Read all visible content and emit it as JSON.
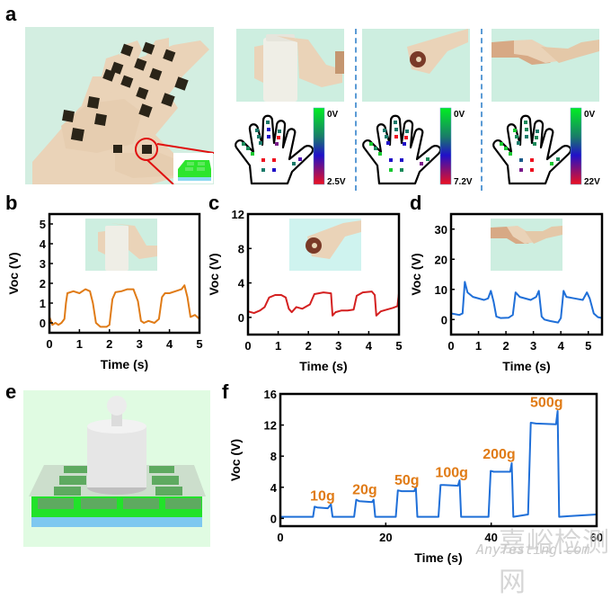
{
  "figure": {
    "panel_labels": {
      "a": "a",
      "b": "b",
      "c": "c",
      "d": "d",
      "e": "e",
      "f": "f"
    },
    "panel_a": {
      "scenarios": [
        {
          "name": "grip-bottle",
          "colorbar_top": "0V",
          "colorbar_bottom": "2.5V"
        },
        {
          "name": "grip-ball",
          "colorbar_top": "0V",
          "colorbar_bottom": "7.2V"
        },
        {
          "name": "handshake",
          "colorbar_top": "0V",
          "colorbar_bottom": "22V"
        }
      ],
      "colorbar_colors": [
        "#00ee22",
        "#1a7a6a",
        "#2010c8",
        "#ee1020"
      ]
    },
    "watermark": {
      "cn": "嘉峪检测网",
      "en": "AnyTesting.com"
    }
  },
  "chart_data": [
    {
      "id": "b",
      "type": "line",
      "title": "",
      "xlabel": "Time (s)",
      "ylabel": "Voc (V)",
      "xlim": [
        0,
        5
      ],
      "ylim": [
        -0.5,
        5.5
      ],
      "xticks": [
        0,
        1,
        2,
        3,
        4,
        5
      ],
      "yticks": [
        0,
        1,
        2,
        3,
        4,
        5
      ],
      "color": "#e07b16",
      "x": [
        0,
        0.1,
        0.2,
        0.3,
        0.4,
        0.5,
        0.55,
        0.6,
        0.8,
        1.0,
        1.2,
        1.35,
        1.45,
        1.55,
        1.7,
        1.9,
        2.0,
        2.1,
        2.2,
        2.4,
        2.6,
        2.8,
        2.95,
        3.05,
        3.15,
        3.3,
        3.5,
        3.65,
        3.75,
        3.85,
        4.0,
        4.2,
        4.4,
        4.5,
        4.6,
        4.7,
        4.85,
        5.0
      ],
      "y": [
        0.3,
        -0.1,
        0.0,
        -0.1,
        0.0,
        0.2,
        1.0,
        1.5,
        1.6,
        1.5,
        1.7,
        1.6,
        1.0,
        0.0,
        -0.2,
        -0.2,
        -0.1,
        1.2,
        1.55,
        1.6,
        1.7,
        1.7,
        1.1,
        0.1,
        0.0,
        0.1,
        0.0,
        0.2,
        1.3,
        1.5,
        1.5,
        1.6,
        1.7,
        1.9,
        1.3,
        0.3,
        0.4,
        0.2
      ]
    },
    {
      "id": "c",
      "type": "line",
      "title": "",
      "xlabel": "Time (s)",
      "ylabel": "Voc (V)",
      "xlim": [
        0,
        5
      ],
      "ylim": [
        -2,
        12
      ],
      "xticks": [
        0,
        1,
        2,
        3,
        4,
        5
      ],
      "yticks": [
        0,
        4,
        8,
        12
      ],
      "color": "#d42020",
      "x": [
        0,
        0.2,
        0.4,
        0.55,
        0.7,
        0.9,
        1.1,
        1.25,
        1.35,
        1.45,
        1.6,
        1.8,
        1.95,
        2.05,
        2.2,
        2.5,
        2.75,
        2.8,
        2.9,
        3.1,
        3.3,
        3.5,
        3.6,
        3.8,
        4.1,
        4.2,
        4.25,
        4.4,
        4.6,
        4.8,
        4.95,
        5.0
      ],
      "y": [
        0.7,
        0.5,
        0.8,
        1.2,
        2.3,
        2.6,
        2.6,
        2.3,
        1.0,
        0.6,
        1.2,
        1.0,
        1.3,
        1.5,
        2.7,
        2.9,
        2.8,
        0.2,
        0.6,
        0.8,
        0.8,
        0.9,
        2.5,
        2.9,
        3.0,
        2.6,
        0.2,
        0.7,
        0.9,
        1.1,
        1.3,
        2.8
      ]
    },
    {
      "id": "d",
      "type": "line",
      "title": "",
      "xlabel": "Time (s)",
      "ylabel": "Voc (V)",
      "xlim": [
        0,
        5.5
      ],
      "ylim": [
        -5,
        35
      ],
      "xticks": [
        0,
        1,
        2,
        3,
        4,
        5
      ],
      "yticks": [
        0,
        10,
        20,
        30
      ],
      "color": "#1f6fd8",
      "x": [
        0,
        0.3,
        0.42,
        0.5,
        0.6,
        0.8,
        1.2,
        1.35,
        1.45,
        1.55,
        1.65,
        1.8,
        2.1,
        2.25,
        2.35,
        2.5,
        2.9,
        3.1,
        3.2,
        3.3,
        3.4,
        3.6,
        3.9,
        4.0,
        4.1,
        4.2,
        4.5,
        4.8,
        4.95,
        5.05,
        5.2,
        5.35,
        5.5
      ],
      "y": [
        2,
        1.5,
        2,
        12.5,
        9,
        7.5,
        6.5,
        7,
        9.5,
        6,
        1,
        0.5,
        0.6,
        1.5,
        9,
        7.5,
        6.5,
        7.5,
        9.5,
        1,
        0,
        -0.5,
        -1,
        0.5,
        9.5,
        7.5,
        7,
        6.5,
        9,
        7,
        2,
        0.8,
        0.5
      ]
    },
    {
      "id": "f",
      "type": "line",
      "title": "",
      "xlabel": "Time (s)",
      "ylabel": "Voc (V)",
      "xlim": [
        0,
        60
      ],
      "ylim": [
        -1,
        16
      ],
      "xticks": [
        0,
        20,
        40,
        60
      ],
      "yticks": [
        0,
        4,
        8,
        12,
        16
      ],
      "color": "#1f6fd8",
      "x": [
        0,
        6.2,
        6.5,
        7,
        9,
        9.6,
        9.9,
        14,
        14.4,
        15,
        17.4,
        17.7,
        18,
        21.9,
        22.3,
        23,
        25.4,
        25.7,
        26,
        30,
        30.4,
        31,
        33.7,
        34,
        34.3,
        39.5,
        39.9,
        40.5,
        43.6,
        43.9,
        44.2,
        47,
        47.5,
        48.5,
        52.3,
        52.6,
        52.9,
        55,
        60
      ],
      "y": [
        0.2,
        0.2,
        1.5,
        1.4,
        1.3,
        1.8,
        0.2,
        0.2,
        2.4,
        2.2,
        2.1,
        2.4,
        0.2,
        0.2,
        3.6,
        3.5,
        3.5,
        4.0,
        0.2,
        0.2,
        4.3,
        4.3,
        4.2,
        4.9,
        0.2,
        0.2,
        6.1,
        6.0,
        6.0,
        7.1,
        0.2,
        0.5,
        12.3,
        12.2,
        12.1,
        13.8,
        0.2,
        0.3,
        0.5
      ],
      "annotations": [
        {
          "text": "10g",
          "x": 8,
          "y": 2.3
        },
        {
          "text": "20g",
          "x": 16,
          "y": 3.1
        },
        {
          "text": "50g",
          "x": 24,
          "y": 4.3
        },
        {
          "text": "100g",
          "x": 32.5,
          "y": 5.3
        },
        {
          "text": "200g",
          "x": 41.5,
          "y": 7.7
        },
        {
          "text": "500g",
          "x": 50.5,
          "y": 14.3
        }
      ],
      "annotation_color": "#e07b16"
    }
  ]
}
